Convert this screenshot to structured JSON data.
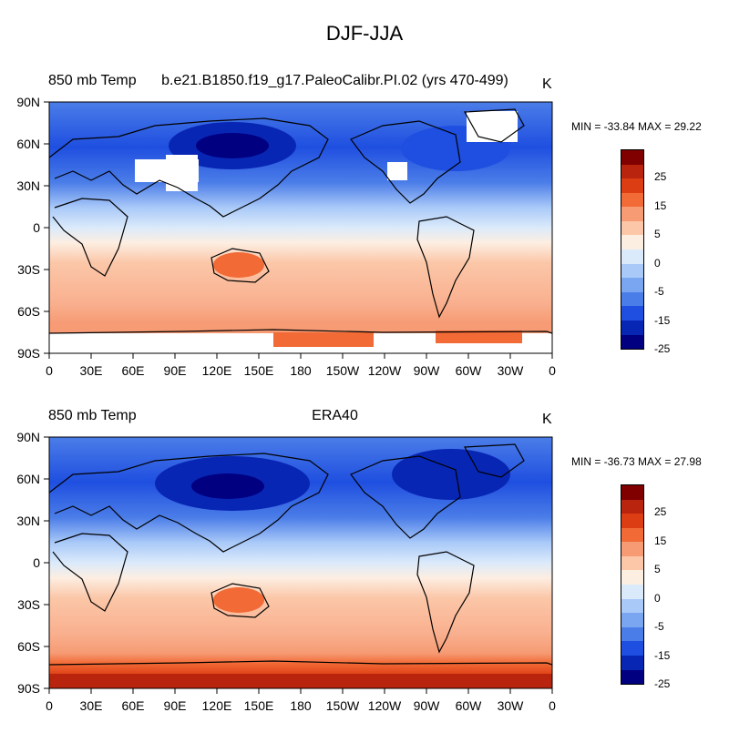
{
  "title": "DJF-JJA",
  "colors": {
    "scale": [
      "#800000",
      "#b8240e",
      "#dd3d13",
      "#f26a36",
      "#f69b74",
      "#fbc7a8",
      "#fdeee2",
      "#dbeafb",
      "#a9c9f8",
      "#7aa6f1",
      "#4b7de8",
      "#1f4fe0",
      "#0826b4",
      "#000080"
    ],
    "ocean_warm": "#f9b08f",
    "ocean_cool": "#4b7de8",
    "missing": "#ffffff"
  },
  "colorbar_labels": [
    "25",
    "15",
    "5",
    "0",
    "-5",
    "-15",
    "-25"
  ],
  "axes": {
    "x_ticks": [
      "0",
      "30E",
      "60E",
      "90E",
      "120E",
      "150E",
      "180",
      "150W",
      "120W",
      "90W",
      "60W",
      "30W",
      "0"
    ],
    "y_ticks": [
      "90N",
      "60N",
      "30N",
      "0",
      "30S",
      "60S",
      "90S"
    ]
  },
  "panels": [
    {
      "left_label": "850 mb Temp",
      "center_label": "b.e21.B1850.f19_g17.PaleoCalibr.PI.02 (yrs 470-499)",
      "units": "K",
      "minmax": "MIN = -33.84 MAX =  29.22"
    },
    {
      "left_label": "850 mb Temp",
      "center_label": "ERA40",
      "units": "K",
      "minmax": "MIN = -36.73 MAX =  27.98"
    }
  ]
}
